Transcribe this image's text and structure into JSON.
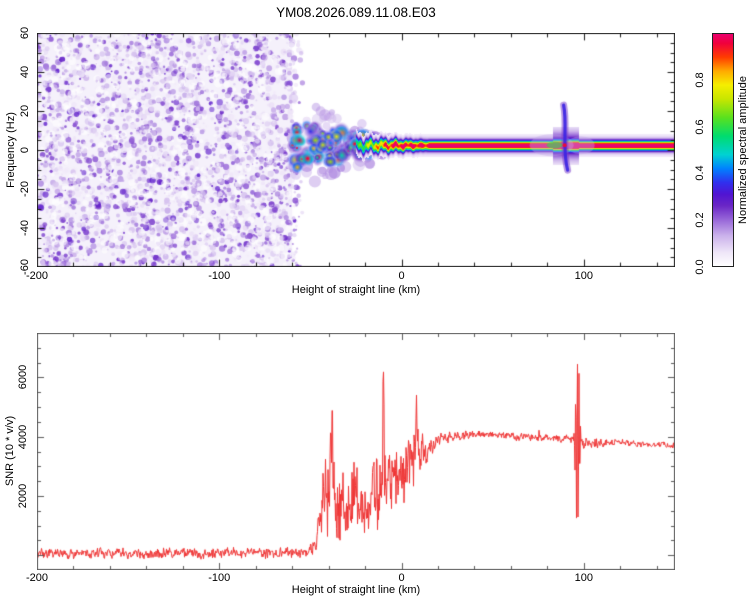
{
  "title": "YM08.2026.089.11.08.E03",
  "colors": {
    "snr_line": "#ee3333",
    "top_frame": "#1a1a1a",
    "bottom_frame": "#5a5a5a",
    "noise_background": "#f5f1fb"
  },
  "chart_data": [
    {
      "type": "heatmap",
      "name": "doppler-spectrogram",
      "title": "YM08.2026.089.11.08.E03",
      "xlabel": "Height of straight line (km)",
      "ylabel": "Frequency (Hz)",
      "xlim": [
        -200,
        150
      ],
      "ylim": [
        -60,
        60
      ],
      "x_major_ticks": [
        -200,
        -100,
        0,
        100
      ],
      "x_minor_step": 20,
      "y_major_ticks": [
        -60,
        -40,
        -20,
        0,
        20,
        40,
        60
      ],
      "y_minor_step": 5,
      "grid": false,
      "colorbar": {
        "label": "Normalized spectral amplitude",
        "ticks": [
          0.0,
          0.2,
          0.4,
          0.6,
          0.8
        ],
        "range": [
          0,
          1
        ]
      },
      "colormap_stops": [
        [
          0.0,
          255,
          255,
          255
        ],
        [
          0.06,
          238,
          229,
          248
        ],
        [
          0.13,
          203,
          178,
          235
        ],
        [
          0.2,
          151,
          102,
          216
        ],
        [
          0.26,
          106,
          38,
          198
        ],
        [
          0.31,
          80,
          20,
          210
        ],
        [
          0.36,
          48,
          48,
          238
        ],
        [
          0.42,
          0,
          130,
          255
        ],
        [
          0.48,
          0,
          210,
          210
        ],
        [
          0.56,
          0,
          220,
          110
        ],
        [
          0.64,
          90,
          225,
          30
        ],
        [
          0.72,
          200,
          230,
          0
        ],
        [
          0.78,
          245,
          238,
          0
        ],
        [
          0.84,
          255,
          170,
          0
        ],
        [
          0.9,
          255,
          60,
          0
        ],
        [
          0.96,
          240,
          0,
          60
        ],
        [
          1.0,
          235,
          0,
          110
        ]
      ],
      "regions": [
        {
          "name": "background-noise",
          "x_range": [
            -200,
            -60
          ],
          "freq_range": [
            -60,
            60
          ],
          "amplitude_range": [
            0.05,
            0.28
          ]
        },
        {
          "name": "turbulent-echo-blobs",
          "x_range": [
            -60,
            -8
          ],
          "freq_center": 2,
          "freq_spread": 26,
          "amplitude_range": [
            0.35,
            1.0
          ]
        },
        {
          "name": "coherent-echo-line",
          "x_range": [
            -25,
            150
          ],
          "freq_center": 2.5,
          "freq_halfwidth": 5,
          "peak_amplitude": 1.0
        },
        {
          "name": "vertical-disturbance",
          "x_km": 90,
          "freq_range": [
            -20,
            12
          ],
          "amplitude": 0.35
        }
      ]
    },
    {
      "type": "line",
      "name": "snr-profile",
      "xlabel": "Height of straight line (km)",
      "ylabel": "SNR (10 * v/v)",
      "xlim": [
        -200,
        150
      ],
      "ylim": [
        -500,
        7500
      ],
      "x_major_ticks": [
        -200,
        -100,
        0,
        100
      ],
      "x_minor_step": 20,
      "y_major_ticks": [
        0,
        2000,
        4000,
        6000
      ],
      "y_labeled_ticks": [
        2000,
        4000,
        6000
      ],
      "y_minor_step": 500,
      "grid": false,
      "envelope": [
        [
          -200,
          60,
          230
        ],
        [
          -120,
          65,
          230
        ],
        [
          -70,
          80,
          240
        ],
        [
          -55,
          90,
          250
        ],
        [
          -50,
          160,
          300
        ],
        [
          -47,
          380,
          420
        ],
        [
          -45,
          900,
          850
        ],
        [
          -43,
          1900,
          1700
        ],
        [
          -41,
          2300,
          2100
        ],
        [
          -39,
          2500,
          2300
        ],
        [
          -37,
          2300,
          2100
        ],
        [
          -35,
          2000,
          1900
        ],
        [
          -33,
          1700,
          1600
        ],
        [
          -31,
          1400,
          1300
        ],
        [
          -29,
          1700,
          1500
        ],
        [
          -27,
          2000,
          1800
        ],
        [
          -25,
          1800,
          1700
        ],
        [
          -23,
          1500,
          1400
        ],
        [
          -21,
          1300,
          1200
        ],
        [
          -19,
          1700,
          1500
        ],
        [
          -17,
          2100,
          1800
        ],
        [
          -15,
          2300,
          1900
        ],
        [
          -13,
          2500,
          2000
        ],
        [
          -11,
          2600,
          2100
        ],
        [
          -9,
          2500,
          2000
        ],
        [
          -7,
          2200,
          1700
        ],
        [
          -5,
          2400,
          1600
        ],
        [
          -3,
          2700,
          1500
        ],
        [
          -1,
          2900,
          1500
        ],
        [
          1,
          3000,
          1600
        ],
        [
          3,
          2900,
          1700
        ],
        [
          5,
          3100,
          1400
        ],
        [
          7,
          3200,
          1500
        ],
        [
          9,
          3300,
          1400
        ],
        [
          11,
          3300,
          1100
        ],
        [
          13,
          3500,
          800
        ],
        [
          15,
          3650,
          550
        ],
        [
          18,
          3800,
          380
        ],
        [
          22,
          3950,
          260
        ],
        [
          28,
          4020,
          210
        ],
        [
          35,
          4060,
          190
        ],
        [
          45,
          4120,
          180
        ],
        [
          55,
          4060,
          180
        ],
        [
          65,
          4000,
          170
        ],
        [
          75,
          3960,
          170
        ],
        [
          85,
          3940,
          160
        ],
        [
          93,
          3900,
          150
        ],
        [
          99,
          3780,
          260
        ],
        [
          103,
          3720,
          280
        ],
        [
          108,
          3790,
          180
        ],
        [
          115,
          3810,
          150
        ],
        [
          125,
          3780,
          140
        ],
        [
          135,
          3730,
          130
        ],
        [
          145,
          3690,
          125
        ],
        [
          150,
          3680,
          125
        ]
      ],
      "spikes": [
        {
          "km": -38,
          "value": 4100
        },
        {
          "km": -10,
          "value": 5600
        },
        {
          "km": 8,
          "value": 4950
        }
      ],
      "burst": {
        "center_km": 96.5,
        "start_km": 94.4,
        "end_km": 98.6,
        "max_value": 7500,
        "min_value": 200,
        "period_km": 0.9,
        "base": 3800
      }
    }
  ],
  "layout_text": {
    "x_tick_labels": [
      "-200",
      "-100",
      "0",
      "100"
    ],
    "top_y_tick_labels": [
      "-60",
      "-40",
      "-20",
      "0",
      "20",
      "40",
      "60"
    ],
    "bottom_y_tick_labels": [
      "2000",
      "4000",
      "6000"
    ],
    "colorbar_tick_labels": [
      "0.0",
      "0.2",
      "0.4",
      "0.6",
      "0.8"
    ]
  }
}
